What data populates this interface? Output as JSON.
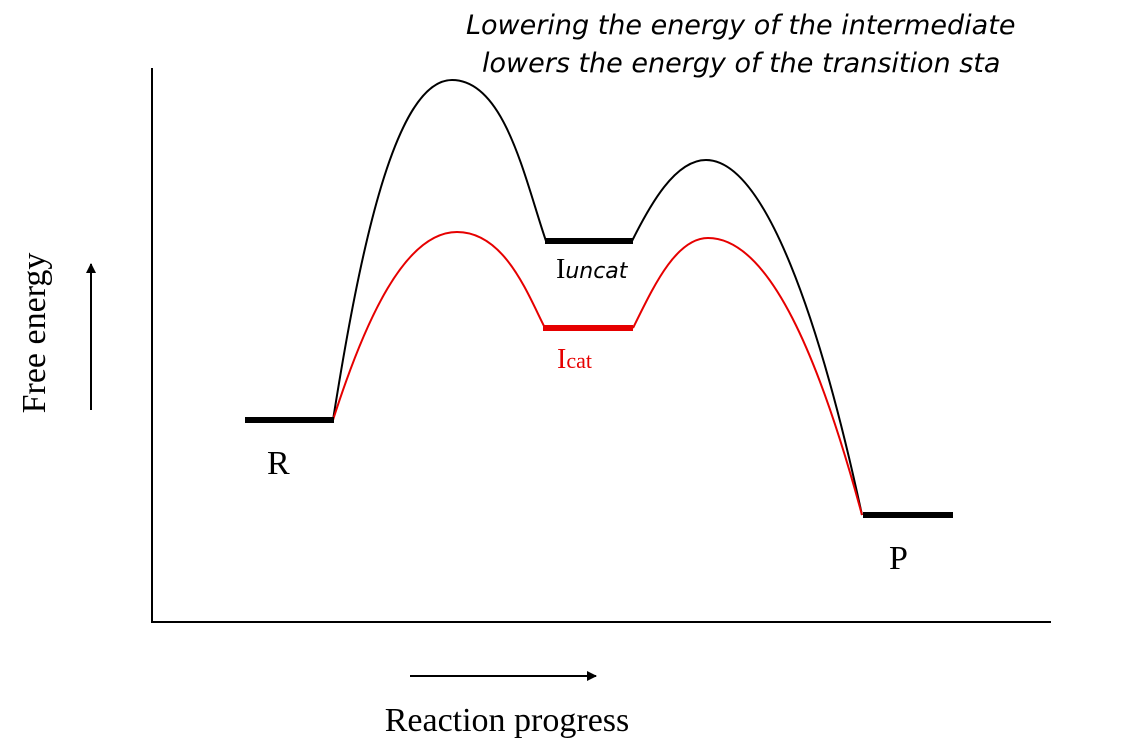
{
  "caption": {
    "line1": "Lowering the energy of the intermediate",
    "line2": "lowers the energy of the transition sta"
  },
  "axes": {
    "ylabel": "Free energy",
    "xlabel": "Reaction progress"
  },
  "states": {
    "reactant": "R",
    "product": "P",
    "uncat_intermediate": {
      "main": "I",
      "sub": "uncat"
    },
    "cat_intermediate": {
      "main": "I",
      "sub": "cat"
    }
  },
  "colors": {
    "uncatalyzed": "#000000",
    "catalyzed": "#e60000"
  }
}
